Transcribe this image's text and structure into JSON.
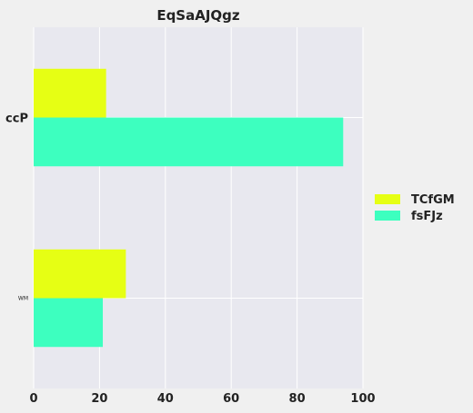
{
  "chart_data": {
    "type": "bar",
    "orientation": "horizontal",
    "title": "EqSaAJQgz",
    "xlabel": "",
    "ylabel": "",
    "categories": [
      "ccP",
      "WM"
    ],
    "series": [
      {
        "name": "TCfGM",
        "color": "#e6ff14",
        "values": [
          22,
          28
        ]
      },
      {
        "name": "fsFJz",
        "color": "#3dffbf",
        "values": [
          94,
          21
        ]
      }
    ],
    "xlim": [
      0,
      100
    ],
    "xticks": [
      0,
      20,
      40,
      60,
      80,
      100
    ],
    "grid": true,
    "legend_position": "right"
  }
}
